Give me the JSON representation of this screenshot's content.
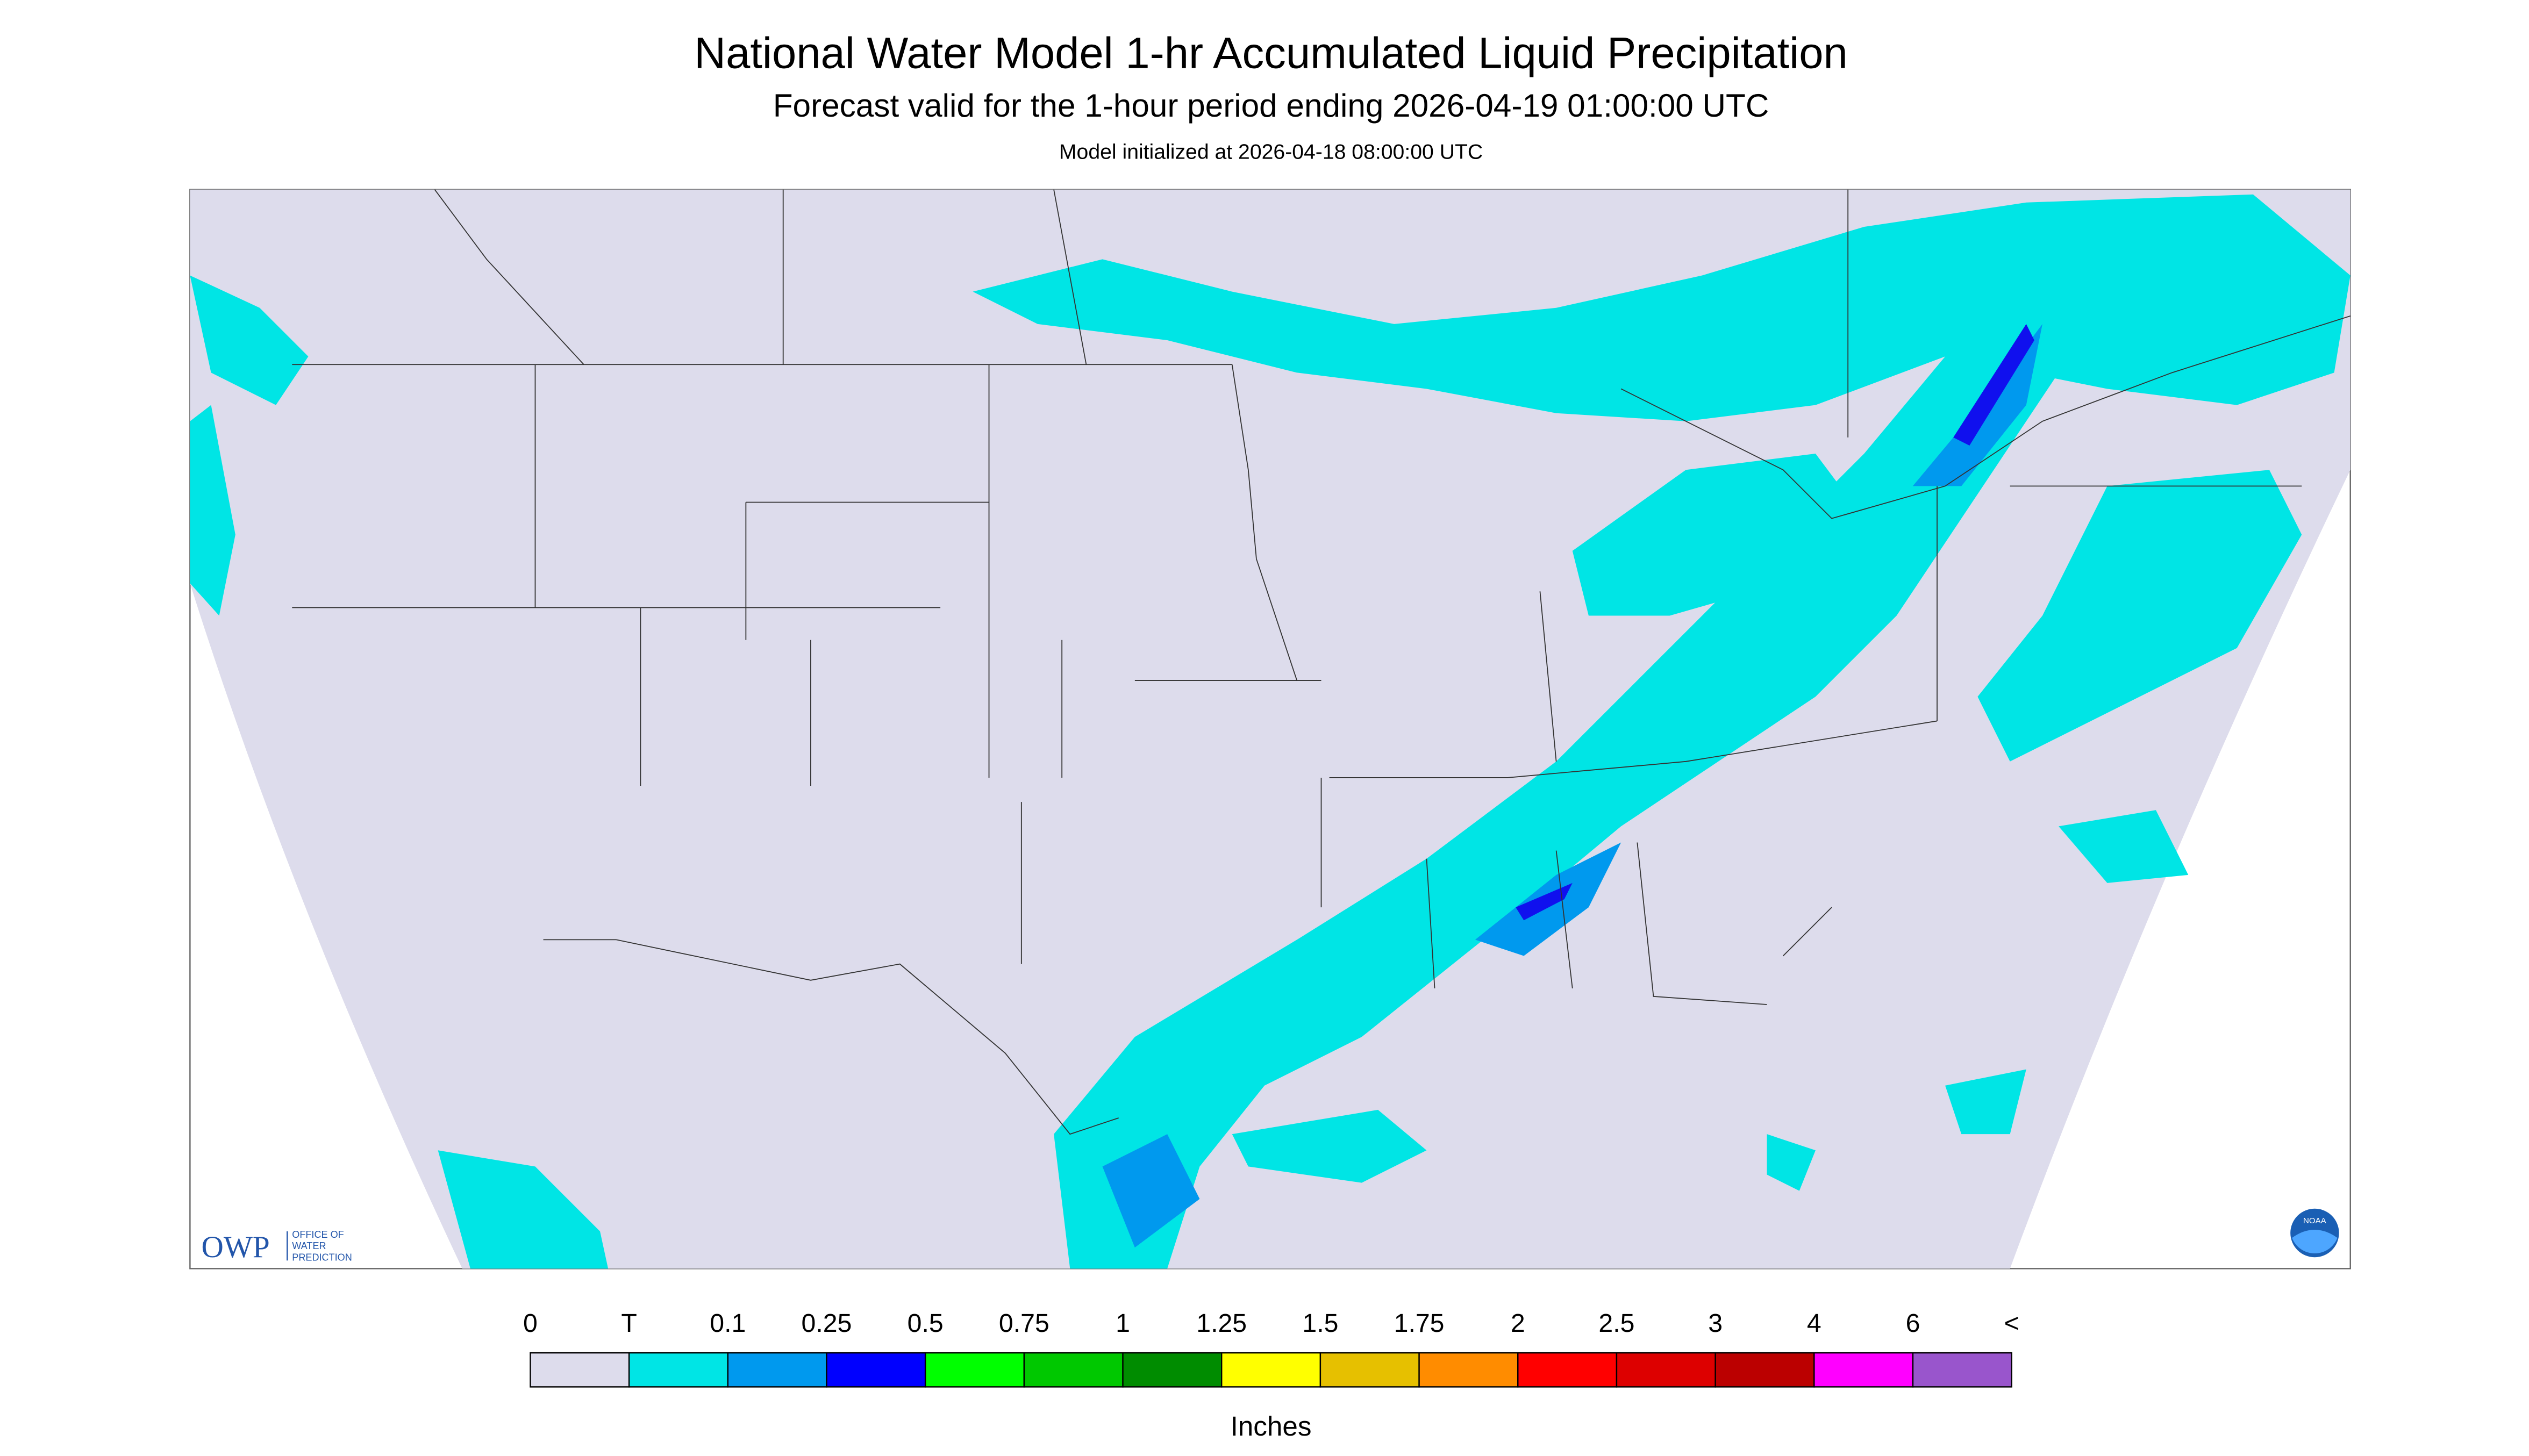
{
  "header": {
    "title": "National Water Model 1-hr Accumulated Liquid Precipitation",
    "subtitle": "Forecast valid for the 1-hour period ending 2026-04-19 01:00:00 UTC",
    "note": "Model initialized at 2026-04-18 08:00:00 UTC"
  },
  "logos": {
    "owp": {
      "acronym": "OWP",
      "name_lines": [
        "OFFICE OF",
        "WATER",
        "PREDICTION"
      ]
    },
    "noaa": "NOAA"
  },
  "legend": {
    "labels": [
      "0",
      "T",
      "0.1",
      "0.25",
      "0.5",
      "0.75",
      "1",
      "1.25",
      "1.5",
      "1.75",
      "2",
      "2.5",
      "3",
      "4",
      "6",
      "<"
    ],
    "colors": [
      "#dddcec",
      "#00e5e5",
      "#0099ee",
      "#0000ff",
      "#00ff00",
      "#00c800",
      "#008c00",
      "#ffff00",
      "#e6c000",
      "#ff8c00",
      "#ff0000",
      "#dd0000",
      "#bb0000",
      "#ff00ff",
      "#9955cc"
    ],
    "unit": "Inches"
  }
}
